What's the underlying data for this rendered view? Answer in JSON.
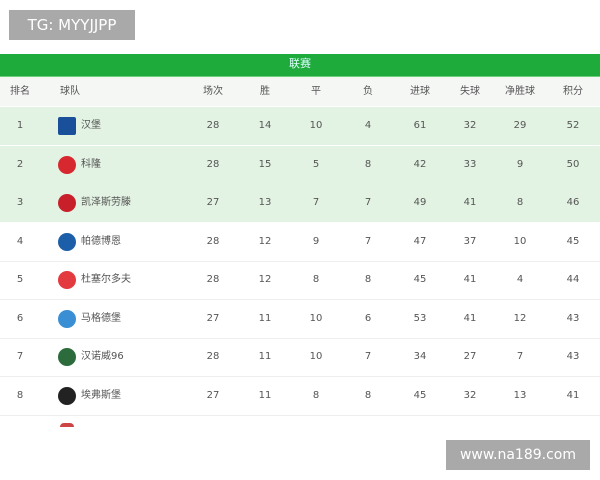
{
  "watermark_top": "TG: MYYJJPP",
  "watermark_bottom": "www.na189.com",
  "league_title": "联赛",
  "headers": [
    "排名",
    "球队",
    "场次",
    "胜",
    "平",
    "负",
    "进球",
    "失球",
    "净胜球",
    "积分"
  ],
  "rows": [
    {
      "rank": "1",
      "team": "汉堡",
      "p": "28",
      "w": "14",
      "d": "10",
      "l": "4",
      "gf": "61",
      "ga": "32",
      "gd": "29",
      "pts": "52",
      "logo": "hamburg-crest",
      "color": "#1a4f9a"
    },
    {
      "rank": "2",
      "team": "科隆",
      "p": "28",
      "w": "15",
      "d": "5",
      "l": "8",
      "gf": "42",
      "ga": "33",
      "gd": "9",
      "pts": "50",
      "logo": "koln-crest",
      "color": "#d8282f"
    },
    {
      "rank": "3",
      "team": "凯泽斯劳滕",
      "p": "27",
      "w": "13",
      "d": "7",
      "l": "7",
      "gf": "49",
      "ga": "41",
      "gd": "8",
      "pts": "46",
      "logo": "kaiserslautern-crest",
      "color": "#c8202a"
    },
    {
      "rank": "4",
      "team": "帕德博恩",
      "p": "28",
      "w": "12",
      "d": "9",
      "l": "7",
      "gf": "47",
      "ga": "37",
      "gd": "10",
      "pts": "45",
      "logo": "paderborn-crest",
      "color": "#1c5fa8"
    },
    {
      "rank": "5",
      "team": "杜塞尔多夫",
      "p": "28",
      "w": "12",
      "d": "8",
      "l": "8",
      "gf": "45",
      "ga": "41",
      "gd": "4",
      "pts": "44",
      "logo": "dusseldorf-crest",
      "color": "#e23a3f"
    },
    {
      "rank": "6",
      "team": "马格德堡",
      "p": "27",
      "w": "11",
      "d": "10",
      "l": "6",
      "gf": "53",
      "ga": "41",
      "gd": "12",
      "pts": "43",
      "logo": "magdeburg-crest",
      "color": "#3a8fd4"
    },
    {
      "rank": "7",
      "team": "汉诺威96",
      "p": "28",
      "w": "11",
      "d": "10",
      "l": "7",
      "gf": "34",
      "ga": "27",
      "gd": "7",
      "pts": "43",
      "logo": "hannover-crest",
      "color": "#2c6b3c"
    },
    {
      "rank": "8",
      "team": "埃弗斯堡",
      "p": "27",
      "w": "11",
      "d": "8",
      "l": "8",
      "gf": "45",
      "ga": "32",
      "gd": "13",
      "pts": "41",
      "logo": "elversberg-crest",
      "color": "#222222"
    }
  ]
}
